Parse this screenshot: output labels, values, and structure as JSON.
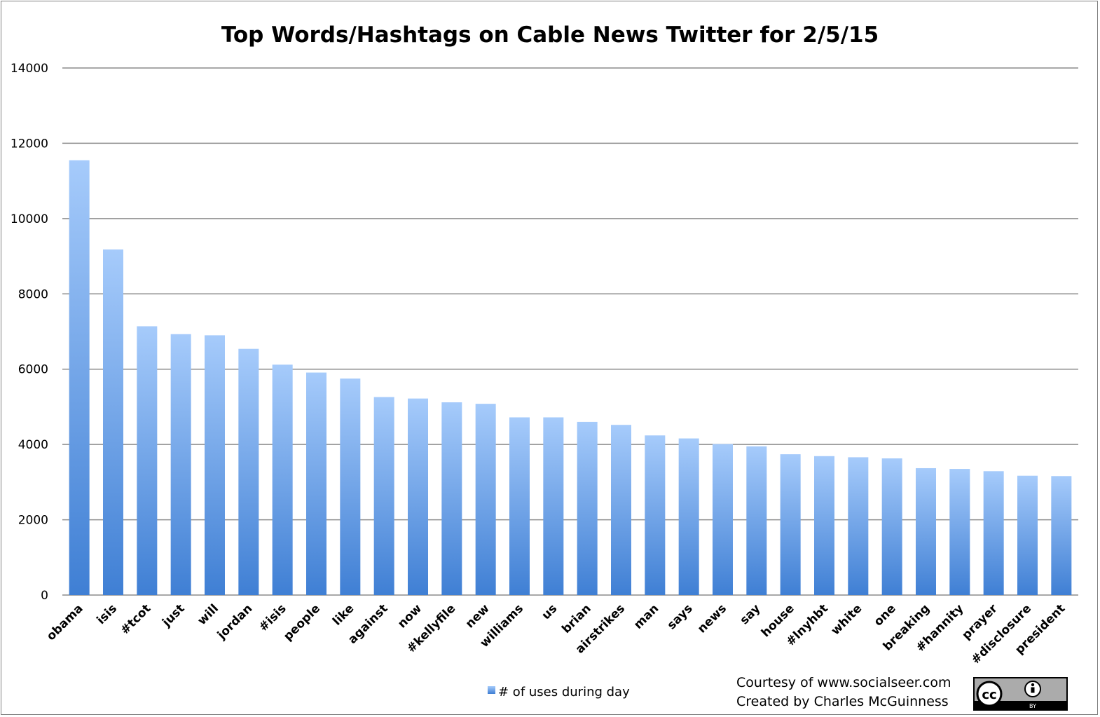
{
  "chart_data": {
    "type": "bar",
    "title": "Top Words/Hashtags on Cable News Twitter for 2/5/15",
    "xlabel": "",
    "ylabel": "",
    "ylim": [
      0,
      14000
    ],
    "yticks": [
      0,
      2000,
      4000,
      6000,
      8000,
      10000,
      12000,
      14000
    ],
    "grid": true,
    "legend_position": "bottom",
    "categories": [
      "obama",
      "isis",
      "#tcot",
      "just",
      "will",
      "jordan",
      "#isis",
      "people",
      "like",
      "against",
      "now",
      "#kellyfile",
      "new",
      "williams",
      "us",
      "brian",
      "airstrikes",
      "man",
      "says",
      "news",
      "say",
      "house",
      "#lnyhbt",
      "white",
      "one",
      "breaking",
      "#hannity",
      "prayer",
      "#disclosure",
      "president"
    ],
    "series": [
      {
        "name": "# of uses during day",
        "color_top": "#a6cbfb",
        "color_bottom": "#3f7fd4",
        "values": [
          11550,
          9180,
          7140,
          6930,
          6900,
          6540,
          6120,
          5910,
          5750,
          5260,
          5220,
          5120,
          5080,
          4720,
          4720,
          4600,
          4520,
          4240,
          4160,
          4010,
          3950,
          3740,
          3690,
          3660,
          3630,
          3370,
          3350,
          3290,
          3170,
          3160
        ]
      }
    ]
  },
  "credits": {
    "line1": "Courtesy of www.socialseer.com",
    "line2": "Created by Charles McGuinness"
  },
  "license_badge": {
    "icon": "creative-commons-by-icon",
    "cc_text": "cc",
    "by_text": "BY"
  }
}
